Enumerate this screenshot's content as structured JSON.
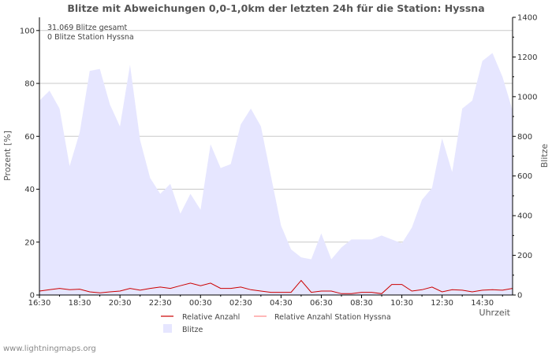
{
  "chart_data": {
    "type": "area",
    "title": "Blitze mit Abweichungen 0,0-1,0km der letzten 24h für die Station: Hyssna",
    "xlabel": "Uhrzeit",
    "ylabel_left": "Prozent   [%]",
    "ylabel_right": "Blitze",
    "ylim_left": [
      0,
      105
    ],
    "ylim_right": [
      0,
      1400
    ],
    "y_ticks_left": [
      "0",
      "20",
      "40",
      "60",
      "80",
      "100"
    ],
    "y_ticks_right": [
      "0",
      "200",
      "400",
      "600",
      "800",
      "1000",
      "1200",
      "1400"
    ],
    "x_ticks": [
      "16:30",
      "18:30",
      "20:30",
      "22:30",
      "00:30",
      "02:30",
      "04:30",
      "06:30",
      "08:30",
      "10:30",
      "12:30",
      "14:30"
    ],
    "x_range_hours": [
      0,
      23.5
    ],
    "annotations": [
      "31.069 Blitze gesamt",
      "0 Blitze Station Hyssna"
    ],
    "series": [
      {
        "name": "Blitze",
        "axis": "right",
        "color": "#e6e6ff",
        "values": [
          980,
          1030,
          940,
          650,
          820,
          1130,
          1140,
          960,
          850,
          1160,
          780,
          590,
          510,
          560,
          410,
          510,
          430,
          760,
          640,
          660,
          860,
          940,
          850,
          600,
          350,
          230,
          190,
          180,
          310,
          180,
          240,
          280,
          280,
          280,
          300,
          280,
          260,
          340,
          480,
          540,
          790,
          620,
          940,
          980,
          1180,
          1220,
          1100,
          930
        ]
      },
      {
        "name": "Relative Anzahl",
        "axis": "left",
        "color": "#cc0000",
        "values": [
          1.5,
          2,
          2.5,
          2,
          2.2,
          1.2,
          0.8,
          1.2,
          1.5,
          2.5,
          1.8,
          2.5,
          3,
          2.5,
          3.5,
          4.5,
          3.5,
          4.5,
          2.5,
          2.5,
          3,
          2,
          1.5,
          1,
          1,
          1,
          5.5,
          1,
          1.5,
          1.5,
          0.5,
          0.5,
          1,
          1,
          0.5,
          4,
          4,
          1.5,
          2,
          3,
          1.2,
          2,
          1.8,
          1.2,
          1.8,
          2,
          1.8,
          2.5
        ]
      },
      {
        "name": "Relative Anzahl Station Hyssna",
        "axis": "left",
        "color": "#ff8888",
        "values": []
      }
    ]
  },
  "footer": {
    "source": "www.lightningmaps.org"
  }
}
